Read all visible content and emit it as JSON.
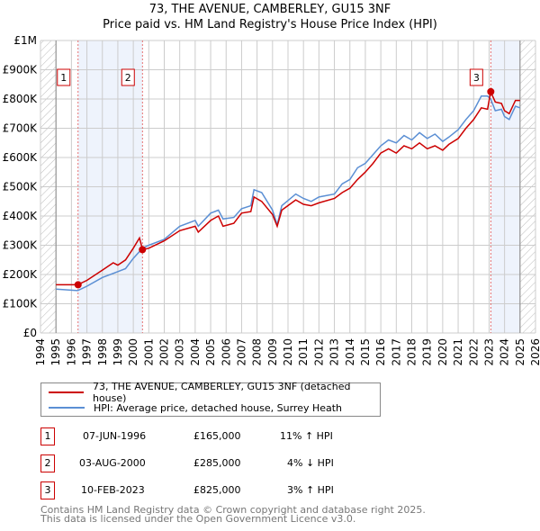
{
  "chart_data": {
    "type": "line",
    "title": "73, THE AVENUE, CAMBERLEY, GU15 3NF",
    "subtitle": "Price paid vs. HM Land Registry's House Price Index (HPI)",
    "xlim": [
      1994,
      2026
    ],
    "ylim": [
      0,
      1000000
    ],
    "x_ticks": [
      "1994",
      "1995",
      "1996",
      "1997",
      "1998",
      "1999",
      "2000",
      "2001",
      "2002",
      "2003",
      "2004",
      "2005",
      "2006",
      "2007",
      "2008",
      "2009",
      "2010",
      "2011",
      "2012",
      "2013",
      "2014",
      "2015",
      "2016",
      "2017",
      "2018",
      "2019",
      "2020",
      "2021",
      "2022",
      "2023",
      "2024",
      "2025",
      "2026"
    ],
    "y_ticks": [
      {
        "v": 0,
        "label": "£0"
      },
      {
        "v": 100000,
        "label": "£100K"
      },
      {
        "v": 200000,
        "label": "£200K"
      },
      {
        "v": 300000,
        "label": "£300K"
      },
      {
        "v": 400000,
        "label": "£400K"
      },
      {
        "v": 500000,
        "label": "£500K"
      },
      {
        "v": 600000,
        "label": "£600K"
      },
      {
        "v": 700000,
        "label": "£700K"
      },
      {
        "v": 800000,
        "label": "£800K"
      },
      {
        "v": 900000,
        "label": "£900K"
      },
      {
        "v": 1000000,
        "label": "£1M"
      }
    ],
    "grid": true,
    "data_range": [
      1995,
      2025
    ],
    "series": [
      {
        "name": "73, THE AVENUE, CAMBERLEY, GU15 3NF (detached house)",
        "color": "#cc0000",
        "points": [
          [
            1995,
            165
          ],
          [
            1996.4,
            165
          ],
          [
            1997,
            180
          ],
          [
            1998,
            215
          ],
          [
            1998.7,
            240
          ],
          [
            1999,
            232
          ],
          [
            1999.5,
            250
          ],
          [
            2000,
            290
          ],
          [
            2000.4,
            325
          ],
          [
            2000.6,
            285
          ],
          [
            2001,
            290
          ],
          [
            2002,
            315
          ],
          [
            2003,
            350
          ],
          [
            2004,
            365
          ],
          [
            2004.2,
            345
          ],
          [
            2005,
            385
          ],
          [
            2005.5,
            400
          ],
          [
            2005.8,
            365
          ],
          [
            2006.5,
            375
          ],
          [
            2007,
            410
          ],
          [
            2007.6,
            415
          ],
          [
            2007.8,
            465
          ],
          [
            2008.3,
            450
          ],
          [
            2009,
            405
          ],
          [
            2009.3,
            365
          ],
          [
            2009.6,
            420
          ],
          [
            2010.5,
            455
          ],
          [
            2011,
            440
          ],
          [
            2011.5,
            435
          ],
          [
            2012,
            445
          ],
          [
            2013,
            460
          ],
          [
            2013.5,
            480
          ],
          [
            2014,
            495
          ],
          [
            2014.5,
            525
          ],
          [
            2015,
            550
          ],
          [
            2015.5,
            580
          ],
          [
            2016,
            615
          ],
          [
            2016.5,
            630
          ],
          [
            2017,
            615
          ],
          [
            2017.5,
            640
          ],
          [
            2018,
            630
          ],
          [
            2018.5,
            650
          ],
          [
            2019,
            630
          ],
          [
            2019.5,
            640
          ],
          [
            2020,
            625
          ],
          [
            2020.4,
            645
          ],
          [
            2021,
            665
          ],
          [
            2021.5,
            700
          ],
          [
            2022,
            730
          ],
          [
            2022.5,
            770
          ],
          [
            2022.9,
            765
          ],
          [
            2023.1,
            825
          ],
          [
            2023.4,
            790
          ],
          [
            2023.8,
            785
          ],
          [
            2024,
            760
          ],
          [
            2024.3,
            750
          ],
          [
            2024.7,
            795
          ],
          [
            2025,
            795
          ]
        ]
      },
      {
        "name": "HPI: Average price, detached house, Surrey Heath",
        "color": "#5b8fd4",
        "points": [
          [
            1995,
            150
          ],
          [
            1996.4,
            145
          ],
          [
            1997,
            160
          ],
          [
            1998,
            190
          ],
          [
            1999,
            210
          ],
          [
            1999.5,
            220
          ],
          [
            2000,
            255
          ],
          [
            2000.6,
            290
          ],
          [
            2001,
            300
          ],
          [
            2002,
            320
          ],
          [
            2003,
            365
          ],
          [
            2004,
            385
          ],
          [
            2004.2,
            365
          ],
          [
            2005,
            410
          ],
          [
            2005.5,
            420
          ],
          [
            2005.8,
            390
          ],
          [
            2006.5,
            395
          ],
          [
            2007,
            425
          ],
          [
            2007.6,
            435
          ],
          [
            2007.8,
            490
          ],
          [
            2008.3,
            480
          ],
          [
            2009,
            420
          ],
          [
            2009.3,
            370
          ],
          [
            2009.6,
            435
          ],
          [
            2010.5,
            475
          ],
          [
            2011,
            460
          ],
          [
            2011.5,
            450
          ],
          [
            2012,
            465
          ],
          [
            2013,
            475
          ],
          [
            2013.5,
            510
          ],
          [
            2014,
            525
          ],
          [
            2014.5,
            565
          ],
          [
            2015,
            580
          ],
          [
            2015.5,
            610
          ],
          [
            2016,
            640
          ],
          [
            2016.5,
            660
          ],
          [
            2017,
            650
          ],
          [
            2017.5,
            675
          ],
          [
            2018,
            660
          ],
          [
            2018.5,
            685
          ],
          [
            2019,
            665
          ],
          [
            2019.5,
            680
          ],
          [
            2020,
            655
          ],
          [
            2020.4,
            670
          ],
          [
            2021,
            695
          ],
          [
            2021.5,
            730
          ],
          [
            2022,
            760
          ],
          [
            2022.5,
            810
          ],
          [
            2022.9,
            810
          ],
          [
            2023.1,
            800
          ],
          [
            2023.4,
            760
          ],
          [
            2023.8,
            765
          ],
          [
            2024,
            740
          ],
          [
            2024.3,
            730
          ],
          [
            2024.7,
            775
          ],
          [
            2025,
            770
          ]
        ]
      }
    ],
    "point_units": "£K",
    "sales": [
      {
        "num": "1",
        "x": 1996.43,
        "value": 165,
        "date": "07-JUN-1996",
        "price": "£165,000",
        "hpi": "11% ↑ HPI"
      },
      {
        "num": "2",
        "x": 2000.59,
        "value": 285,
        "date": "03-AUG-2000",
        "price": "£285,000",
        "hpi": "4% ↓ HPI"
      },
      {
        "num": "3",
        "x": 2023.11,
        "value": 825,
        "date": "10-FEB-2023",
        "price": "£825,000",
        "hpi": "3% ↑ HPI"
      }
    ],
    "legend_placement": "bottom"
  },
  "footer": {
    "line1": "Contains HM Land Registry data © Crown copyright and database right 2025.",
    "line2": "This data is licensed under the Open Government Licence v3.0."
  }
}
